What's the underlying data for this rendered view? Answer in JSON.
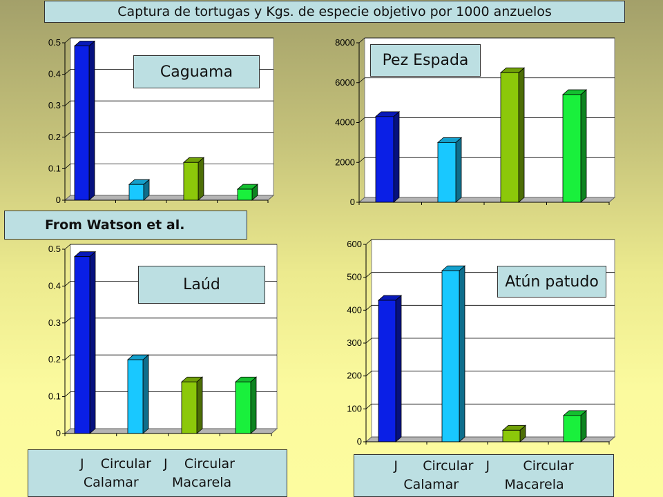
{
  "title": "Captura de tortugas y Kgs. de especie objetivo por 1000 anzuelos",
  "source_note": "From Watson et al.",
  "category_labels_left": {
    "line1": "J    Circular   J    Circular",
    "line2": "Calamar        Macarela"
  },
  "category_labels_right": {
    "line1": "J      Circular   J        Circular",
    "line2": "Calamar           Macarela"
  },
  "colors": {
    "bar1": "#0a1fe6",
    "bar2": "#19c8ff",
    "bar3": "#8cc80a",
    "bar4": "#19f03c"
  },
  "chart_data": [
    {
      "type": "bar",
      "title": "Caguama",
      "categories": [
        "J Calamar",
        "Circular Calamar",
        "J Macarela",
        "Circular Macarela"
      ],
      "values": [
        0.49,
        0.05,
        0.12,
        0.035
      ],
      "ylim": [
        0,
        0.5
      ],
      "yticks": [
        "0",
        "0.1",
        "0.2",
        "0.3",
        "0.4",
        "0.5"
      ],
      "grid": true
    },
    {
      "type": "bar",
      "title": "Pez Espada",
      "categories": [
        "J Calamar",
        "Circular Calamar",
        "J Macarela",
        "Circular Macarela"
      ],
      "values": [
        4300,
        3000,
        6500,
        5400
      ],
      "ylim": [
        0,
        8000
      ],
      "yticks": [
        "0",
        "2000",
        "4000",
        "6000",
        "8000"
      ],
      "grid": true
    },
    {
      "type": "bar",
      "title": "Laúd",
      "categories": [
        "J Calamar",
        "Circular Calamar",
        "J Macarela",
        "Circular Macarela"
      ],
      "values": [
        0.48,
        0.2,
        0.14,
        0.14
      ],
      "ylim": [
        0,
        0.5
      ],
      "yticks": [
        "0",
        "0.1",
        "0.2",
        "0.3",
        "0.4",
        "0.5"
      ],
      "grid": true
    },
    {
      "type": "bar",
      "title": "Atún patudo",
      "categories": [
        "J Calamar",
        "Circular Calamar",
        "J Macarela",
        "Circular Macarela"
      ],
      "values": [
        430,
        520,
        35,
        80
      ],
      "ylim": [
        0,
        600
      ],
      "yticks": [
        "0",
        "100",
        "200",
        "300",
        "400",
        "500",
        "600"
      ],
      "grid": true
    }
  ]
}
